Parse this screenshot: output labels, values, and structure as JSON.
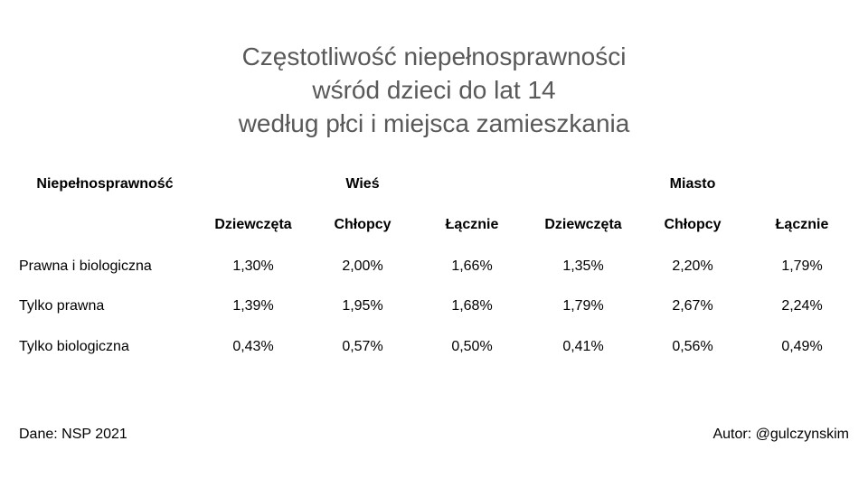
{
  "title_lines": [
    "Częstotliwość niepełnosprawności",
    "wśród dzieci do lat 14",
    "według płci i miejsca zamieszkania"
  ],
  "table": {
    "header_label": "Niepełnosprawność",
    "groups": [
      "Wieś",
      "Miasto"
    ],
    "subheaders": [
      "Dziewczęta",
      "Chłopcy",
      "Łącznie",
      "Dziewczęta",
      "Chłopcy",
      "Łącznie"
    ],
    "rows": [
      {
        "label": "Prawna i biologiczna",
        "values": [
          "1,30%",
          "2,00%",
          "1,66%",
          "1,35%",
          "2,20%",
          "1,79%"
        ]
      },
      {
        "label": "Tylko prawna",
        "values": [
          "1,39%",
          "1,95%",
          "1,68%",
          "1,79%",
          "2,67%",
          "2,24%"
        ]
      },
      {
        "label": "Tylko biologiczna",
        "values": [
          "0,43%",
          "0,57%",
          "0,50%",
          "0,41%",
          "0,56%",
          "0,49%"
        ]
      }
    ]
  },
  "footer": {
    "source": "Dane: NSP 2021",
    "author": "Autor: @gulczynskim"
  }
}
